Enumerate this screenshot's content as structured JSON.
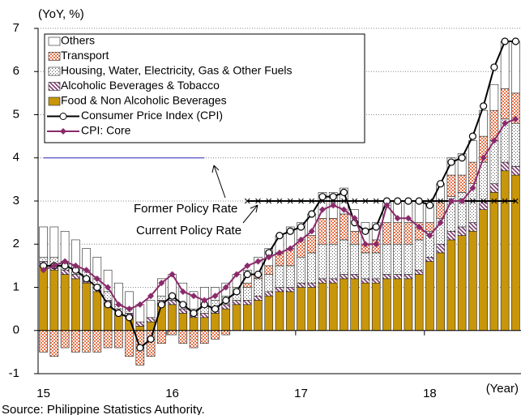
{
  "chart_data": {
    "type": "stacked_bar_line",
    "y_label": "(YoY, %)",
    "x_label": "(Year)",
    "source": "Source: Philippine Statistics Authority.",
    "categories": [
      "15",
      null,
      null,
      null,
      null,
      null,
      null,
      null,
      null,
      null,
      null,
      null,
      "16",
      null,
      null,
      null,
      null,
      null,
      null,
      null,
      null,
      null,
      null,
      null,
      "17",
      null,
      null,
      null,
      null,
      null,
      null,
      null,
      null,
      null,
      null,
      null,
      "18",
      null,
      null,
      null,
      null,
      null,
      null,
      null,
      null
    ],
    "ylim": [
      -1,
      7
    ],
    "yticks": [
      -1,
      0,
      1,
      2,
      3,
      4,
      5,
      6,
      7
    ],
    "grid": true,
    "legend": "upper left",
    "series": [
      {
        "name": "Food & Non Alcoholic Beverages",
        "color": "#c8960a",
        "fill": "solid",
        "values": [
          1.5,
          1.4,
          1.3,
          1.2,
          1.1,
          0.9,
          0.6,
          0.4,
          0.3,
          0.1,
          0.2,
          0.6,
          0.6,
          0.4,
          0.3,
          0.3,
          0.4,
          0.5,
          0.6,
          0.6,
          0.7,
          0.8,
          0.9,
          0.9,
          1.0,
          1.0,
          1.1,
          1.1,
          1.2,
          1.2,
          1.1,
          1.1,
          1.2,
          1.2,
          1.2,
          1.3,
          1.6,
          1.8,
          2.1,
          2.2,
          2.3,
          2.8,
          3.2,
          3.7,
          3.6
        ]
      },
      {
        "name": "Alcoholic Beverages & Tobacco",
        "color": "#7a3b6e",
        "fill": "hatch",
        "values": [
          0.1,
          0.1,
          0.1,
          0.1,
          0.1,
          0.1,
          0.1,
          0.1,
          0.1,
          0.1,
          0.1,
          0.1,
          0.1,
          0.1,
          0.1,
          0.1,
          0.1,
          0.1,
          0.1,
          0.1,
          0.1,
          0.1,
          0.1,
          0.1,
          0.1,
          0.1,
          0.1,
          0.1,
          0.1,
          0.1,
          0.1,
          0.1,
          0.1,
          0.1,
          0.1,
          0.1,
          0.1,
          0.2,
          0.2,
          0.2,
          0.2,
          0.2,
          0.2,
          0.2,
          0.2
        ]
      },
      {
        "name": " Housing, Water, Electricity, Gas & Other Fuels",
        "color": "#555555",
        "fill": "dots",
        "values": [
          0.1,
          0.2,
          0.2,
          0.2,
          0.2,
          0.2,
          0.2,
          0.1,
          0.1,
          0.0,
          0.0,
          0.1,
          0.1,
          0.1,
          0.1,
          0.2,
          0.2,
          0.2,
          0.3,
          0.3,
          0.4,
          0.4,
          0.5,
          0.5,
          0.6,
          0.7,
          0.8,
          0.8,
          0.8,
          0.7,
          0.6,
          0.6,
          0.7,
          0.7,
          0.7,
          0.7,
          0.6,
          0.6,
          0.8,
          0.8,
          0.9,
          0.9,
          1.0,
          1.0,
          1.0
        ]
      },
      {
        "name": "Transport",
        "color": "#e8744a",
        "fill": "checker",
        "values": [
          -0.5,
          -0.6,
          -0.4,
          -0.5,
          -0.5,
          -0.5,
          -0.4,
          -0.4,
          -0.6,
          -0.8,
          -0.6,
          -0.3,
          -0.1,
          -0.3,
          -0.4,
          -0.3,
          -0.2,
          -0.1,
          0.0,
          0.1,
          0.1,
          0.2,
          0.3,
          0.4,
          0.4,
          0.4,
          0.6,
          0.6,
          0.6,
          0.3,
          0.2,
          0.3,
          0.5,
          0.5,
          0.5,
          0.4,
          0.2,
          0.4,
          0.5,
          0.4,
          0.5,
          0.6,
          0.7,
          0.7,
          0.7
        ]
      },
      {
        "name": "Others",
        "color": "#ffffff",
        "fill": "solid",
        "values": [
          0.7,
          0.7,
          0.7,
          0.6,
          0.5,
          0.5,
          0.5,
          0.5,
          0.4,
          0.4,
          0.4,
          0.4,
          0.5,
          0.5,
          0.4,
          0.4,
          0.3,
          0.3,
          0.3,
          0.3,
          0.4,
          0.4,
          0.4,
          0.5,
          0.4,
          0.5,
          0.6,
          0.6,
          0.6,
          0.5,
          0.5,
          0.4,
          0.5,
          0.5,
          0.5,
          0.5,
          0.5,
          0.4,
          0.4,
          0.5,
          0.5,
          0.6,
          0.6,
          1.1,
          1.2
        ]
      }
    ],
    "lines": [
      {
        "name": "Consumer Price Index (CPI)",
        "color": "#000000",
        "marker": "circle",
        "values": [
          1.5,
          1.5,
          1.5,
          1.4,
          1.2,
          1.0,
          0.6,
          0.4,
          0.3,
          -0.4,
          -0.2,
          0.6,
          0.8,
          0.6,
          0.4,
          0.6,
          0.5,
          0.7,
          0.9,
          1.3,
          1.3,
          1.8,
          2.2,
          2.3,
          2.4,
          2.7,
          3.1,
          3.1,
          3.2,
          2.5,
          2.3,
          2.4,
          3.0,
          3.0,
          3.0,
          3.0,
          2.9,
          3.4,
          3.9,
          4.0,
          4.5,
          5.2,
          6.1,
          6.7,
          6.7
        ]
      },
      {
        "name": "CPI: Core",
        "color": "#8b2a6b",
        "marker": "diamond",
        "values": [
          1.4,
          1.5,
          1.6,
          1.5,
          1.4,
          1.2,
          1.0,
          0.6,
          0.5,
          0.6,
          0.8,
          1.1,
          1.3,
          0.9,
          0.8,
          0.7,
          0.8,
          1.0,
          1.3,
          1.5,
          1.6,
          1.7,
          1.8,
          1.9,
          2.1,
          2.3,
          2.8,
          2.9,
          2.8,
          2.6,
          2.0,
          2.0,
          2.9,
          2.6,
          2.6,
          2.4,
          2.2,
          2.5,
          3.0,
          3.0,
          3.3,
          4.0,
          4.4,
          4.8,
          4.9
        ]
      }
    ],
    "reference_lines": [
      {
        "name": "Former Policy Rate",
        "color": "#6a6acc",
        "marker": "none",
        "values": [
          4,
          4,
          4,
          4,
          4,
          4,
          4,
          4,
          4,
          4,
          4,
          4,
          4,
          4,
          4,
          4,
          null,
          null,
          null,
          null,
          null,
          null,
          null,
          null,
          null,
          null,
          null,
          null,
          null,
          null,
          null,
          null,
          null,
          null,
          null,
          null,
          null,
          null,
          null,
          null,
          null,
          null,
          null,
          null,
          null
        ]
      },
      {
        "name": "Current Policy Rate",
        "color": "#000000",
        "marker": "cross",
        "values": [
          null,
          null,
          null,
          null,
          null,
          null,
          null,
          null,
          null,
          null,
          null,
          null,
          null,
          null,
          null,
          null,
          null,
          null,
          null,
          3,
          3,
          3,
          3,
          3,
          3,
          3,
          3,
          3,
          3,
          3,
          3,
          3,
          3,
          3,
          3,
          3,
          3,
          3,
          3,
          3,
          3,
          3,
          3,
          3,
          3
        ]
      }
    ]
  }
}
